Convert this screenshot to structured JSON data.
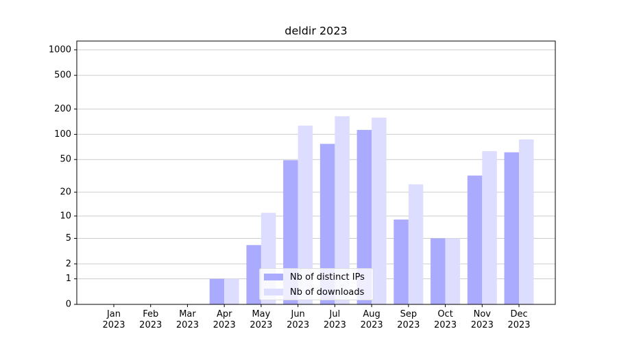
{
  "chart_data": {
    "type": "bar",
    "title": "deldir 2023",
    "categories": [
      "Jan 2023",
      "Feb 2023",
      "Mar 2023",
      "Apr 2023",
      "May 2023",
      "Jun 2023",
      "Jul 2023",
      "Aug 2023",
      "Sep 2023",
      "Oct 2023",
      "Nov 2023",
      "Dec 2023"
    ],
    "series": [
      {
        "name": "Nb of distinct IPs",
        "color": "#aaaaff",
        "values": [
          0,
          0,
          0,
          1,
          4,
          49,
          77,
          113,
          9,
          5,
          32,
          61
        ]
      },
      {
        "name": "Nb of downloads",
        "color": "#ddddff",
        "values": [
          0,
          0,
          0,
          1,
          11,
          127,
          164,
          158,
          25,
          5,
          63,
          87
        ]
      }
    ],
    "yscale": "symlog",
    "ylim": [
      0,
      1270
    ],
    "yticks": [
      0,
      1,
      2,
      5,
      10,
      20,
      50,
      100,
      200,
      500,
      1000
    ],
    "grid": true,
    "legend": "lower center"
  }
}
